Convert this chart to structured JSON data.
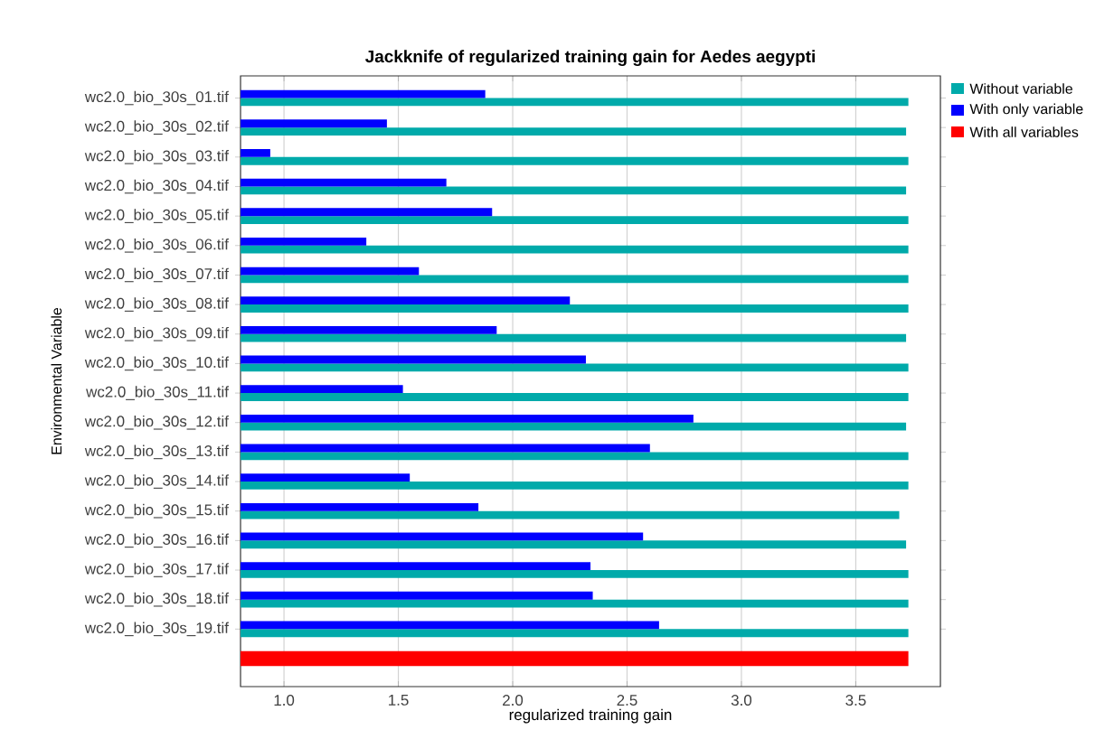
{
  "chart_data": {
    "type": "bar",
    "orientation": "horizontal",
    "title": "Jackknife of regularized training gain for Aedes aegypti",
    "xlabel": "regularized training gain",
    "ylabel": "Environmental Variable",
    "categories": [
      "wc2.0_bio_30s_01.tif",
      "wc2.0_bio_30s_02.tif",
      "wc2.0_bio_30s_03.tif",
      "wc2.0_bio_30s_04.tif",
      "wc2.0_bio_30s_05.tif",
      "wc2.0_bio_30s_06.tif",
      "wc2.0_bio_30s_07.tif",
      "wc2.0_bio_30s_08.tif",
      "wc2.0_bio_30s_09.tif",
      "wc2.0_bio_30s_10.tif",
      "wc2.0_bio_30s_11.tif",
      "wc2.0_bio_30s_12.tif",
      "wc2.0_bio_30s_13.tif",
      "wc2.0_bio_30s_14.tif",
      "wc2.0_bio_30s_15.tif",
      "wc2.0_bio_30s_16.tif",
      "wc2.0_bio_30s_17.tif",
      "wc2.0_bio_30s_18.tif",
      "wc2.0_bio_30s_19.tif",
      null
    ],
    "series": [
      {
        "name": "Without variable",
        "color": "#00aaaa",
        "values": [
          3.73,
          3.72,
          3.73,
          3.72,
          3.73,
          3.73,
          3.73,
          3.73,
          3.72,
          3.73,
          3.73,
          3.72,
          3.73,
          3.73,
          3.69,
          3.72,
          3.73,
          3.73,
          3.73,
          null
        ]
      },
      {
        "name": "With only variable",
        "color": "#0000ff",
        "values": [
          1.88,
          1.45,
          0.94,
          1.71,
          1.91,
          1.36,
          1.59,
          2.25,
          1.93,
          2.32,
          1.52,
          2.79,
          2.6,
          1.55,
          1.85,
          2.57,
          2.34,
          2.35,
          2.64,
          null
        ]
      },
      {
        "name": "With all variables",
        "color": "#ff0000",
        "values": [
          null,
          null,
          null,
          null,
          null,
          null,
          null,
          null,
          null,
          null,
          null,
          null,
          null,
          null,
          null,
          null,
          null,
          null,
          null,
          3.73
        ]
      }
    ],
    "xlim": [
      0.81,
      3.87
    ],
    "xticks": [
      {
        "value": 1.0,
        "label": "1.0"
      },
      {
        "value": 1.5,
        "label": "1.5"
      },
      {
        "value": 2.0,
        "label": "2.0"
      },
      {
        "value": 2.5,
        "label": "2.5"
      },
      {
        "value": 3.0,
        "label": "3.0"
      },
      {
        "value": 3.5,
        "label": "3.5"
      }
    ],
    "grid": "x",
    "legend": "top right"
  }
}
